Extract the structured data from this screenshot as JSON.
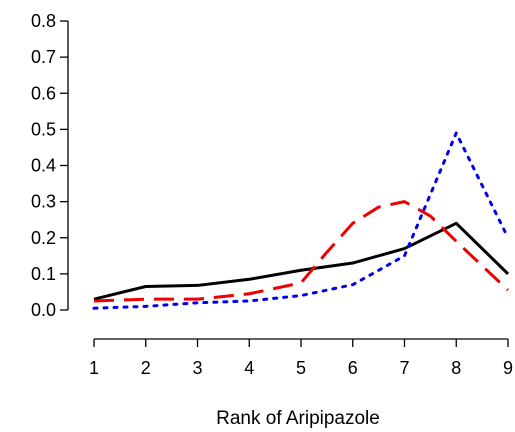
{
  "chart_data": {
    "type": "line",
    "title": "",
    "xlabel": "Rank of Aripipazole",
    "ylabel": "",
    "x": [
      1,
      2,
      3,
      4,
      5,
      6,
      7,
      8,
      9
    ],
    "xticks": [
      "1",
      "2",
      "3",
      "4",
      "5",
      "6",
      "7",
      "8",
      "9"
    ],
    "yticks": [
      "0.0",
      "0.1",
      "0.2",
      "0.3",
      "0.4",
      "0.5",
      "0.6",
      "0.7",
      "0.8"
    ],
    "xlim": [
      1,
      9
    ],
    "ylim": [
      0,
      0.8
    ],
    "grid": false,
    "series": [
      {
        "style": "solid",
        "color": "#000000",
        "x": [
          1,
          2,
          3,
          4,
          5,
          6,
          7,
          8,
          9
        ],
        "values": [
          0.03,
          0.065,
          0.068,
          0.085,
          0.11,
          0.13,
          0.17,
          0.24,
          0.1
        ]
      },
      {
        "style": "dashed",
        "color": "#ee0000",
        "x": [
          1,
          2,
          3,
          4,
          5,
          5.5,
          6,
          6.5,
          7,
          7.5,
          8,
          9
        ],
        "values": [
          0.025,
          0.03,
          0.03,
          0.045,
          0.075,
          0.16,
          0.24,
          0.285,
          0.3,
          0.26,
          0.19,
          0.055
        ]
      },
      {
        "style": "dotted",
        "color": "#0000ee",
        "x": [
          1,
          2,
          3,
          4,
          5,
          6,
          7,
          8,
          9
        ],
        "values": [
          0.005,
          0.01,
          0.02,
          0.025,
          0.04,
          0.07,
          0.15,
          0.49,
          0.2
        ]
      }
    ]
  }
}
